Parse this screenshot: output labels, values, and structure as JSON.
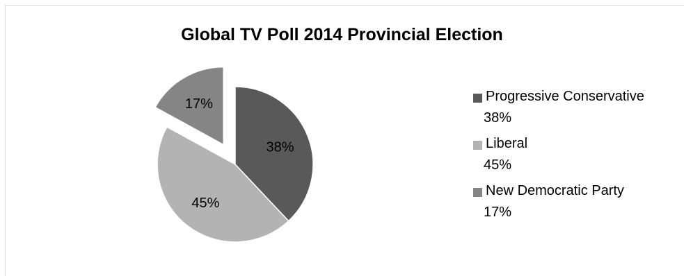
{
  "chart_data": {
    "type": "pie",
    "title": "Global TV Poll 2014 Provincial Election",
    "slices": [
      {
        "label": "Progressive Conservative",
        "value": 38,
        "display": "38%",
        "color": "#595959",
        "exploded": false
      },
      {
        "label": "Liberal",
        "value": 45,
        "display": "45%",
        "color": "#b3b3b3",
        "exploded": false
      },
      {
        "label": "New Democratic Party",
        "value": 17,
        "display": "17%",
        "color": "#858585",
        "exploded": true
      }
    ],
    "legend_position": "right"
  }
}
